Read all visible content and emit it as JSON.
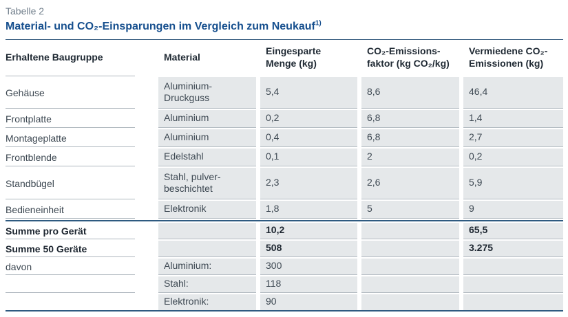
{
  "colors": {
    "title_blue": "#164f8e",
    "rule_blue": "#2e5a80",
    "cell_background": "#e5e8ea",
    "caption_gray": "#6f7d8a"
  },
  "caption": "Tabelle 2",
  "title": "Material- und CO₂-Einsparungen im Vergleich zum Neukauf",
  "title_footnote_marker": "1)",
  "table": {
    "headers": {
      "c0": "Erhaltene Baugruppe",
      "c1": "Material",
      "c2": "Eingesparte\nMenge (kg)",
      "c3": "CO₂-Emissions-\nfaktor (kg CO₂/kg)",
      "c4": "Vermiedene CO₂-\nEmissionen (kg)"
    },
    "rows": [
      {
        "c0": "Gehäuse",
        "c1": "Aluminium-\nDruckguss",
        "c2": "5,4",
        "c3": "8,6",
        "c4": "46,4"
      },
      {
        "c0": "Frontplatte",
        "c1": "Aluminium",
        "c2": "0,2",
        "c3": "6,8",
        "c4": "1,4"
      },
      {
        "c0": "Montageplatte",
        "c1": "Aluminium",
        "c2": "0,4",
        "c3": "6,8",
        "c4": "2,7"
      },
      {
        "c0": "Frontblende",
        "c1": "Edelstahl",
        "c2": "0,1",
        "c3": "2",
        "c4": "0,2"
      },
      {
        "c0": "Standbügel",
        "c1": "Stahl, pulver-\nbeschichtet",
        "c2": "2,3",
        "c3": "2,6",
        "c4": "5,9"
      },
      {
        "c0": "Bedieneinheit",
        "c1": "Elektronik",
        "c2": "1,8",
        "c3": "5",
        "c4": "9"
      }
    ],
    "summary_rows": [
      {
        "c0": "Summe pro Gerät",
        "c1": "",
        "c2": "10,2",
        "c3": "",
        "c4": "65,5"
      },
      {
        "c0": "Summe 50 Geräte",
        "c1": "",
        "c2": "508",
        "c3": "",
        "c4": "3.275"
      }
    ],
    "breakdown_rows": [
      {
        "c0": "davon",
        "c1": "Aluminium:",
        "c2": "300",
        "c3": "",
        "c4": ""
      },
      {
        "c0": "",
        "c1": "Stahl:",
        "c2": "118",
        "c3": "",
        "c4": ""
      },
      {
        "c0": "",
        "c1": "Elektronik:",
        "c2": "90",
        "c3": "",
        "c4": ""
      }
    ]
  }
}
